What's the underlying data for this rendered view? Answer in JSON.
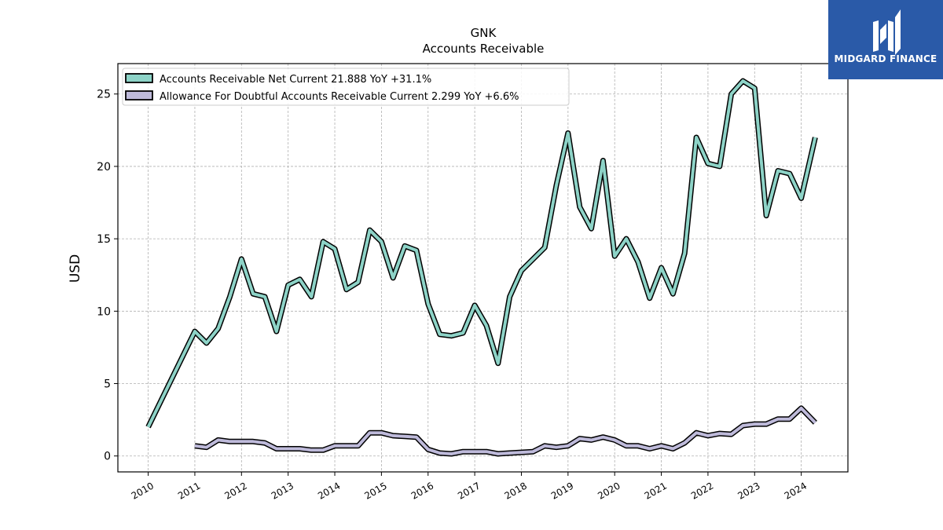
{
  "brand": {
    "name": "MIDGARD FINANCE",
    "bg_color": "#2a5aa8"
  },
  "chart_data": {
    "type": "line",
    "title": "GNK",
    "subtitle": "Accounts Receivable",
    "ylabel": "USD",
    "xlabel": "",
    "ylim": [
      -1.1,
      27.1
    ],
    "xlim": [
      2009.35,
      2025.0
    ],
    "yticks": [
      0,
      5,
      10,
      15,
      20,
      25
    ],
    "xticks": [
      "2010",
      "2011",
      "2012",
      "2013",
      "2014",
      "2015",
      "2016",
      "2017",
      "2018",
      "2019",
      "2020",
      "2021",
      "2022",
      "2023",
      "2024"
    ],
    "grid": true,
    "legend_position": "top-left",
    "series": [
      {
        "name": "Accounts Receivable Net Current  21.888 YoY +31.1%",
        "color": "#8dd3c7",
        "points": [
          [
            2010.0,
            2.0
          ],
          [
            2011.0,
            8.6
          ],
          [
            2011.25,
            7.8
          ],
          [
            2011.5,
            8.8
          ],
          [
            2011.75,
            11.0
          ],
          [
            2012.0,
            13.6
          ],
          [
            2012.25,
            11.2
          ],
          [
            2012.5,
            11.0
          ],
          [
            2012.75,
            8.6
          ],
          [
            2013.0,
            11.8
          ],
          [
            2013.25,
            12.2
          ],
          [
            2013.5,
            11.0
          ],
          [
            2013.75,
            14.8
          ],
          [
            2014.0,
            14.3
          ],
          [
            2014.25,
            11.5
          ],
          [
            2014.5,
            12.0
          ],
          [
            2014.75,
            15.6
          ],
          [
            2015.0,
            14.8
          ],
          [
            2015.25,
            12.3
          ],
          [
            2015.5,
            14.5
          ],
          [
            2015.75,
            14.2
          ],
          [
            2016.0,
            10.5
          ],
          [
            2016.25,
            8.4
          ],
          [
            2016.5,
            8.3
          ],
          [
            2016.75,
            8.5
          ],
          [
            2017.0,
            10.4
          ],
          [
            2017.25,
            9.0
          ],
          [
            2017.5,
            6.4
          ],
          [
            2017.75,
            11.0
          ],
          [
            2018.0,
            12.8
          ],
          [
            2018.5,
            14.4
          ],
          [
            2018.75,
            18.7
          ],
          [
            2019.0,
            22.3
          ],
          [
            2019.25,
            17.2
          ],
          [
            2019.5,
            15.7
          ],
          [
            2019.75,
            20.4
          ],
          [
            2020.0,
            13.8
          ],
          [
            2020.25,
            15.0
          ],
          [
            2020.5,
            13.4
          ],
          [
            2020.75,
            10.9
          ],
          [
            2021.0,
            13.0
          ],
          [
            2021.25,
            11.2
          ],
          [
            2021.5,
            14.0
          ],
          [
            2021.75,
            22.0
          ],
          [
            2022.0,
            20.2
          ],
          [
            2022.25,
            20.0
          ],
          [
            2022.5,
            25.0
          ],
          [
            2022.75,
            25.9
          ],
          [
            2023.0,
            25.4
          ],
          [
            2023.25,
            16.6
          ],
          [
            2023.5,
            19.7
          ],
          [
            2023.75,
            19.5
          ],
          [
            2024.0,
            17.8
          ],
          [
            2024.3,
            22.0
          ]
        ]
      },
      {
        "name": "Allowance For Doubtful Accounts Receivable Current  2.299 YoY +6.6%",
        "color": "#bebada",
        "points": [
          [
            2011.0,
            0.7
          ],
          [
            2011.25,
            0.6
          ],
          [
            2011.5,
            1.1
          ],
          [
            2011.75,
            1.0
          ],
          [
            2012.0,
            1.0
          ],
          [
            2012.25,
            1.0
          ],
          [
            2012.5,
            0.9
          ],
          [
            2012.75,
            0.5
          ],
          [
            2013.0,
            0.5
          ],
          [
            2013.25,
            0.5
          ],
          [
            2013.5,
            0.4
          ],
          [
            2013.75,
            0.4
          ],
          [
            2014.0,
            0.7
          ],
          [
            2014.25,
            0.7
          ],
          [
            2014.5,
            0.7
          ],
          [
            2014.75,
            1.6
          ],
          [
            2015.0,
            1.6
          ],
          [
            2015.25,
            1.4
          ],
          [
            2015.5,
            1.35
          ],
          [
            2015.75,
            1.3
          ],
          [
            2016.0,
            0.45
          ],
          [
            2016.25,
            0.2
          ],
          [
            2016.5,
            0.15
          ],
          [
            2016.75,
            0.3
          ],
          [
            2017.0,
            0.3
          ],
          [
            2017.25,
            0.3
          ],
          [
            2017.5,
            0.15
          ],
          [
            2017.75,
            0.2
          ],
          [
            2018.0,
            0.25
          ],
          [
            2018.25,
            0.3
          ],
          [
            2018.5,
            0.7
          ],
          [
            2018.75,
            0.6
          ],
          [
            2019.0,
            0.7
          ],
          [
            2019.25,
            1.2
          ],
          [
            2019.5,
            1.1
          ],
          [
            2019.75,
            1.3
          ],
          [
            2020.0,
            1.1
          ],
          [
            2020.25,
            0.7
          ],
          [
            2020.5,
            0.7
          ],
          [
            2020.75,
            0.5
          ],
          [
            2021.0,
            0.7
          ],
          [
            2021.25,
            0.5
          ],
          [
            2021.5,
            0.9
          ],
          [
            2021.75,
            1.6
          ],
          [
            2022.0,
            1.4
          ],
          [
            2022.25,
            1.55
          ],
          [
            2022.5,
            1.5
          ],
          [
            2022.75,
            2.1
          ],
          [
            2023.0,
            2.2
          ],
          [
            2023.25,
            2.2
          ],
          [
            2023.5,
            2.55
          ],
          [
            2023.75,
            2.55
          ],
          [
            2024.0,
            3.3
          ],
          [
            2024.3,
            2.3
          ]
        ]
      }
    ]
  }
}
